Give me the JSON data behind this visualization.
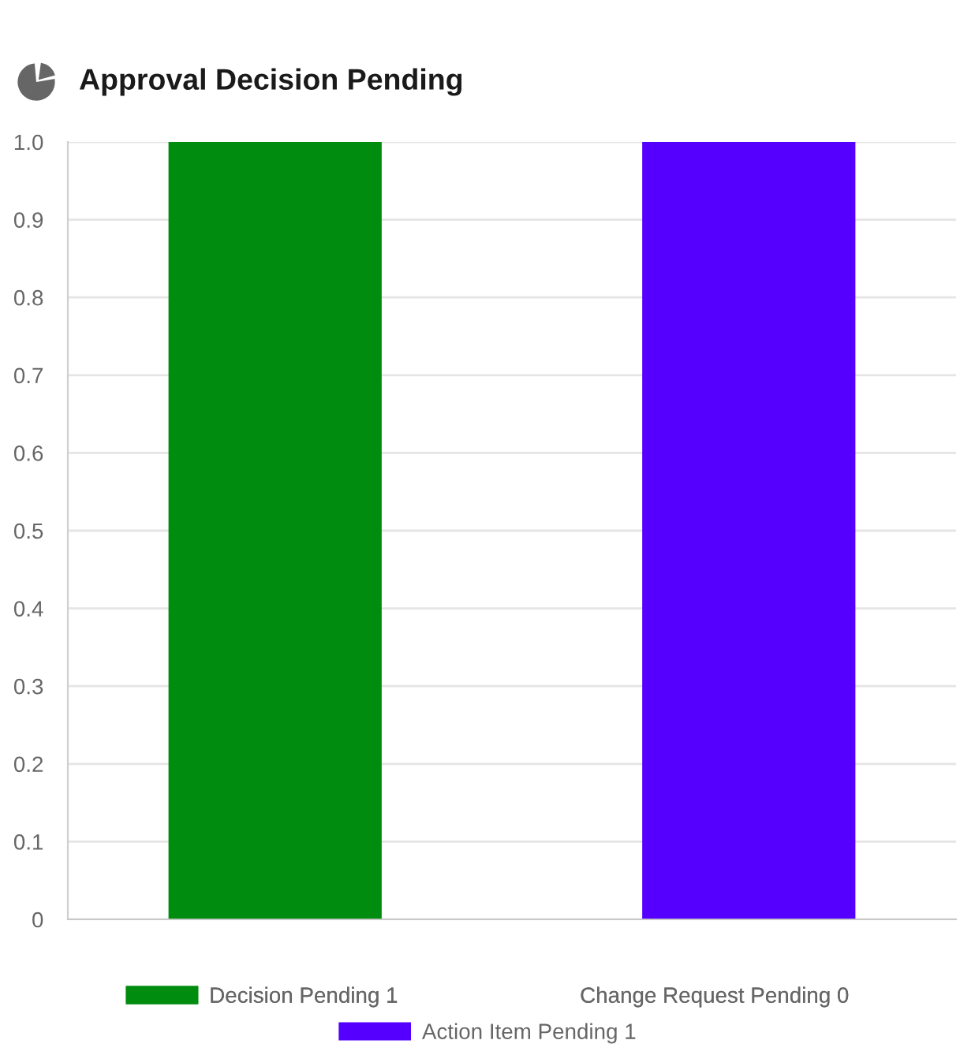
{
  "chart_data": {
    "type": "bar",
    "title": "Approval Decision Pending",
    "categories": [
      null
    ],
    "series": [
      {
        "name": "Decision Pending 1",
        "color": "#008c0e",
        "values": [
          1
        ]
      },
      {
        "name": "Change Request Pending 0",
        "color": "#ffffff",
        "values": [
          0
        ]
      },
      {
        "name": "Action Item Pending 1",
        "color": "#5500ff",
        "values": [
          1
        ]
      }
    ],
    "ylim": [
      0,
      1
    ],
    "yticks": [
      0,
      0.1,
      0.2,
      0.3,
      0.4,
      0.5,
      0.6,
      0.7,
      0.8,
      0.9,
      {
        "value": 1,
        "label": "1.0"
      }
    ],
    "grid": "y",
    "legend": "bottom",
    "tick_labels": "y"
  }
}
